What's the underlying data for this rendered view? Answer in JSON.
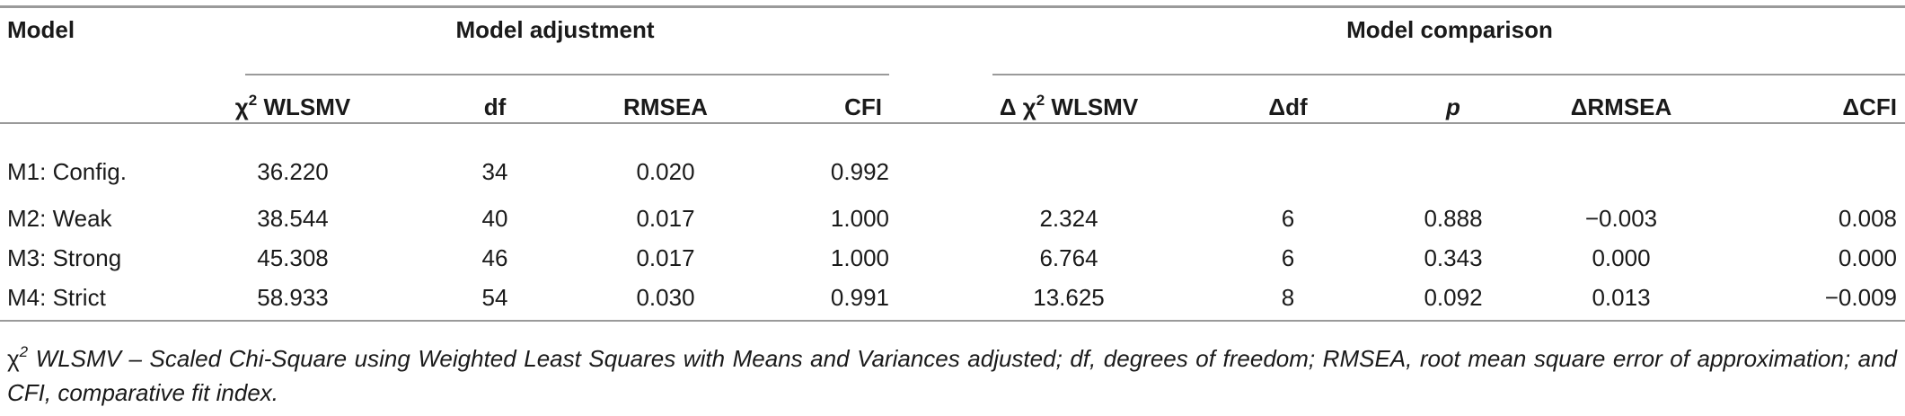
{
  "headers": {
    "model": "Model",
    "group_adjustment": "Model adjustment",
    "group_comparison": "Model comparison",
    "chi2": "χ",
    "chi2_sup": "2",
    "chi2_rest": " WLSMV",
    "df": "df",
    "rmsea": "RMSEA",
    "cfi": "CFI",
    "d_chi2_prefix": "Δ  χ",
    "d_chi2_sup": "2",
    "d_chi2_rest": " WLSMV",
    "d_df": "Δdf",
    "p": "p",
    "d_rmsea": "ΔRMSEA",
    "d_cfi": "ΔCFI"
  },
  "rows": [
    {
      "model": "M1: Config.",
      "chi2": "36.220",
      "df": "34",
      "rmsea": "0.020",
      "cfi": "0.992",
      "d_chi2": "",
      "d_df": "",
      "p": "",
      "d_rmsea": "",
      "d_cfi": ""
    },
    {
      "model": "M2: Weak",
      "chi2": "38.544",
      "df": "40",
      "rmsea": "0.017",
      "cfi": "1.000",
      "d_chi2": "2.324",
      "d_df": "6",
      "p": "0.888",
      "d_rmsea": "−0.003",
      "d_cfi": "0.008"
    },
    {
      "model": "M3: Strong",
      "chi2": "45.308",
      "df": "46",
      "rmsea": "0.017",
      "cfi": "1.000",
      "d_chi2": "6.764",
      "d_df": "6",
      "p": "0.343",
      "d_rmsea": "0.000",
      "d_cfi": "0.000"
    },
    {
      "model": "M4: Strict",
      "chi2": "58.933",
      "df": "54",
      "rmsea": "0.030",
      "cfi": "0.991",
      "d_chi2": "13.625",
      "d_df": "8",
      "p": "0.092",
      "d_rmsea": "0.013",
      "d_cfi": "−0.009"
    }
  ],
  "footnote": {
    "sym": "χ",
    "sup": "2",
    "text": " WLSMV – Scaled Chi-Square using Weighted Least Squares with Means and Variances adjusted; df, degrees of freedom; RMSEA, root mean square error of approximation; and CFI, comparative fit index."
  }
}
